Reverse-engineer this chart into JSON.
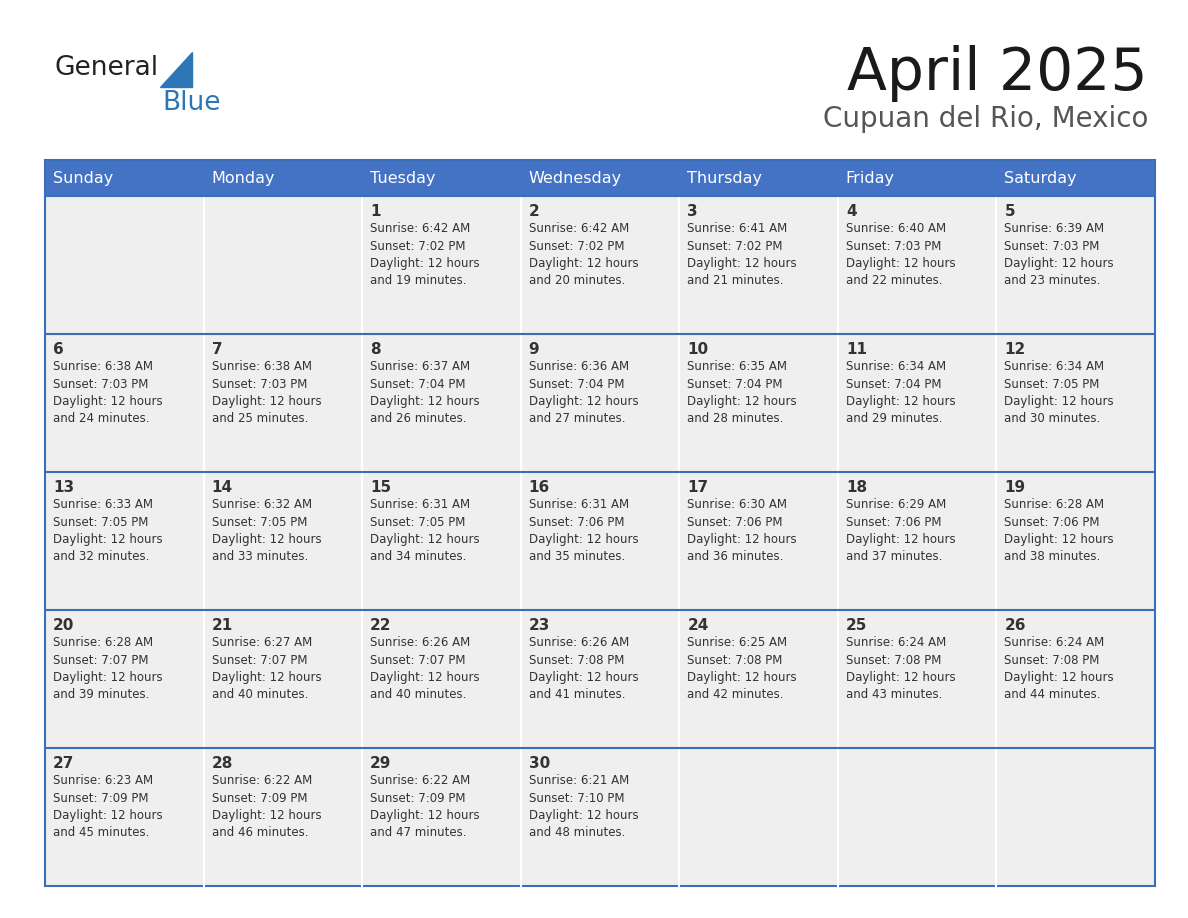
{
  "title": "April 2025",
  "subtitle": "Cupuan del Rio, Mexico",
  "days_of_week": [
    "Sunday",
    "Monday",
    "Tuesday",
    "Wednesday",
    "Thursday",
    "Friday",
    "Saturday"
  ],
  "header_bg": "#4472C4",
  "header_text_color": "#FFFFFF",
  "cell_bg": "#EFEFEF",
  "border_color": "#3A6EB5",
  "text_color": "#333333",
  "day_number_color": "#333333",
  "calendar_data": [
    [
      {
        "day": "",
        "info": ""
      },
      {
        "day": "",
        "info": ""
      },
      {
        "day": "1",
        "info": "Sunrise: 6:42 AM\nSunset: 7:02 PM\nDaylight: 12 hours\nand 19 minutes."
      },
      {
        "day": "2",
        "info": "Sunrise: 6:42 AM\nSunset: 7:02 PM\nDaylight: 12 hours\nand 20 minutes."
      },
      {
        "day": "3",
        "info": "Sunrise: 6:41 AM\nSunset: 7:02 PM\nDaylight: 12 hours\nand 21 minutes."
      },
      {
        "day": "4",
        "info": "Sunrise: 6:40 AM\nSunset: 7:03 PM\nDaylight: 12 hours\nand 22 minutes."
      },
      {
        "day": "5",
        "info": "Sunrise: 6:39 AM\nSunset: 7:03 PM\nDaylight: 12 hours\nand 23 minutes."
      }
    ],
    [
      {
        "day": "6",
        "info": "Sunrise: 6:38 AM\nSunset: 7:03 PM\nDaylight: 12 hours\nand 24 minutes."
      },
      {
        "day": "7",
        "info": "Sunrise: 6:38 AM\nSunset: 7:03 PM\nDaylight: 12 hours\nand 25 minutes."
      },
      {
        "day": "8",
        "info": "Sunrise: 6:37 AM\nSunset: 7:04 PM\nDaylight: 12 hours\nand 26 minutes."
      },
      {
        "day": "9",
        "info": "Sunrise: 6:36 AM\nSunset: 7:04 PM\nDaylight: 12 hours\nand 27 minutes."
      },
      {
        "day": "10",
        "info": "Sunrise: 6:35 AM\nSunset: 7:04 PM\nDaylight: 12 hours\nand 28 minutes."
      },
      {
        "day": "11",
        "info": "Sunrise: 6:34 AM\nSunset: 7:04 PM\nDaylight: 12 hours\nand 29 minutes."
      },
      {
        "day": "12",
        "info": "Sunrise: 6:34 AM\nSunset: 7:05 PM\nDaylight: 12 hours\nand 30 minutes."
      }
    ],
    [
      {
        "day": "13",
        "info": "Sunrise: 6:33 AM\nSunset: 7:05 PM\nDaylight: 12 hours\nand 32 minutes."
      },
      {
        "day": "14",
        "info": "Sunrise: 6:32 AM\nSunset: 7:05 PM\nDaylight: 12 hours\nand 33 minutes."
      },
      {
        "day": "15",
        "info": "Sunrise: 6:31 AM\nSunset: 7:05 PM\nDaylight: 12 hours\nand 34 minutes."
      },
      {
        "day": "16",
        "info": "Sunrise: 6:31 AM\nSunset: 7:06 PM\nDaylight: 12 hours\nand 35 minutes."
      },
      {
        "day": "17",
        "info": "Sunrise: 6:30 AM\nSunset: 7:06 PM\nDaylight: 12 hours\nand 36 minutes."
      },
      {
        "day": "18",
        "info": "Sunrise: 6:29 AM\nSunset: 7:06 PM\nDaylight: 12 hours\nand 37 minutes."
      },
      {
        "day": "19",
        "info": "Sunrise: 6:28 AM\nSunset: 7:06 PM\nDaylight: 12 hours\nand 38 minutes."
      }
    ],
    [
      {
        "day": "20",
        "info": "Sunrise: 6:28 AM\nSunset: 7:07 PM\nDaylight: 12 hours\nand 39 minutes."
      },
      {
        "day": "21",
        "info": "Sunrise: 6:27 AM\nSunset: 7:07 PM\nDaylight: 12 hours\nand 40 minutes."
      },
      {
        "day": "22",
        "info": "Sunrise: 6:26 AM\nSunset: 7:07 PM\nDaylight: 12 hours\nand 40 minutes."
      },
      {
        "day": "23",
        "info": "Sunrise: 6:26 AM\nSunset: 7:08 PM\nDaylight: 12 hours\nand 41 minutes."
      },
      {
        "day": "24",
        "info": "Sunrise: 6:25 AM\nSunset: 7:08 PM\nDaylight: 12 hours\nand 42 minutes."
      },
      {
        "day": "25",
        "info": "Sunrise: 6:24 AM\nSunset: 7:08 PM\nDaylight: 12 hours\nand 43 minutes."
      },
      {
        "day": "26",
        "info": "Sunrise: 6:24 AM\nSunset: 7:08 PM\nDaylight: 12 hours\nand 44 minutes."
      }
    ],
    [
      {
        "day": "27",
        "info": "Sunrise: 6:23 AM\nSunset: 7:09 PM\nDaylight: 12 hours\nand 45 minutes."
      },
      {
        "day": "28",
        "info": "Sunrise: 6:22 AM\nSunset: 7:09 PM\nDaylight: 12 hours\nand 46 minutes."
      },
      {
        "day": "29",
        "info": "Sunrise: 6:22 AM\nSunset: 7:09 PM\nDaylight: 12 hours\nand 47 minutes."
      },
      {
        "day": "30",
        "info": "Sunrise: 6:21 AM\nSunset: 7:10 PM\nDaylight: 12 hours\nand 48 minutes."
      },
      {
        "day": "",
        "info": ""
      },
      {
        "day": "",
        "info": ""
      },
      {
        "day": "",
        "info": ""
      }
    ]
  ],
  "logo_general_color": "#222222",
  "logo_blue_color": "#2E75B6",
  "logo_triangle_color": "#2E75B6"
}
